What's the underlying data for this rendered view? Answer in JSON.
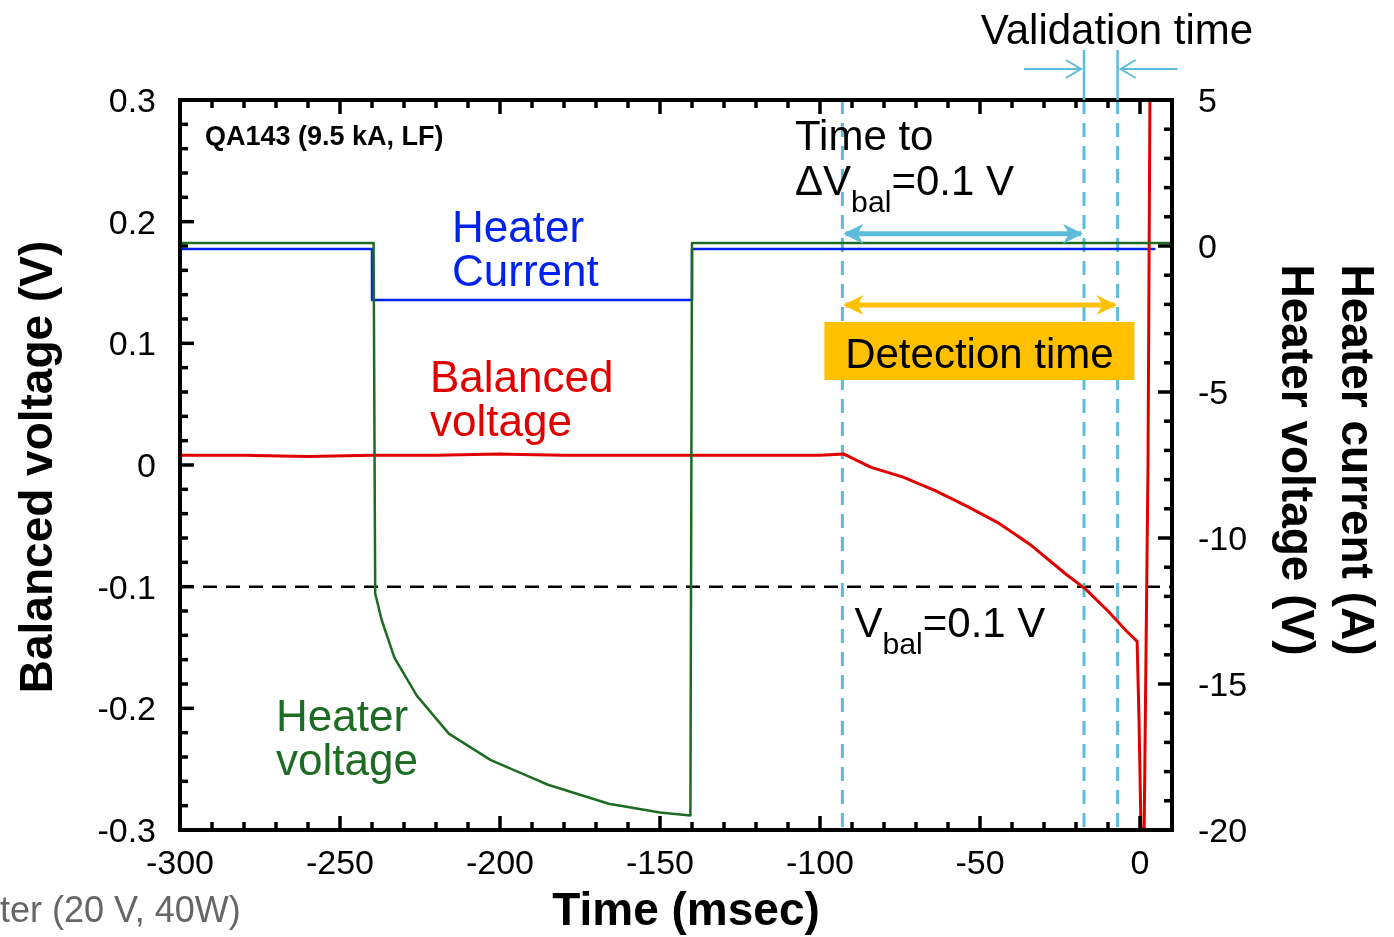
{
  "chart_data": {
    "type": "line",
    "xlabel": "Time (msec)",
    "ylabel": "Balanced voltage (V)",
    "y2label": "Heater current (A)\nHeater voltage (V)",
    "xlim": [
      -300,
      10
    ],
    "ylim": [
      -0.3,
      0.3
    ],
    "y2lim": [
      -20,
      5
    ],
    "xticks": [
      -300,
      {
        "value": -290,
        "label": null
      },
      {
        "value": -280,
        "label": null
      },
      {
        "value": -270,
        "label": null
      },
      {
        "value": -260,
        "label": null
      },
      -250,
      {
        "value": -240,
        "label": null
      },
      {
        "value": -230,
        "label": null
      },
      {
        "value": -220,
        "label": null
      },
      {
        "value": -210,
        "label": null
      },
      -200,
      {
        "value": -190,
        "label": null
      },
      {
        "value": -180,
        "label": null
      },
      {
        "value": -170,
        "label": null
      },
      {
        "value": -160,
        "label": null
      },
      -150,
      {
        "value": -140,
        "label": null
      },
      {
        "value": -130,
        "label": null
      },
      {
        "value": -120,
        "label": null
      },
      {
        "value": -110,
        "label": null
      },
      -100,
      {
        "value": -90,
        "label": null
      },
      {
        "value": -80,
        "label": null
      },
      {
        "value": -70,
        "label": null
      },
      {
        "value": -60,
        "label": null
      },
      -50,
      {
        "value": -40,
        "label": null
      },
      {
        "value": -30,
        "label": null
      },
      {
        "value": -20,
        "label": null
      },
      {
        "value": -10,
        "label": null
      },
      0
    ],
    "yticks": [
      -0.3,
      {
        "value": -0.28,
        "label": null
      },
      {
        "value": -0.26,
        "label": null
      },
      {
        "value": -0.24,
        "label": null
      },
      {
        "value": -0.22,
        "label": null
      },
      -0.2,
      {
        "value": -0.18,
        "label": null
      },
      {
        "value": -0.16,
        "label": null
      },
      {
        "value": -0.14,
        "label": null
      },
      {
        "value": -0.12,
        "label": null
      },
      -0.1,
      {
        "value": -0.08,
        "label": null
      },
      {
        "value": -0.06,
        "label": null
      },
      {
        "value": -0.04,
        "label": null
      },
      {
        "value": -0.02,
        "label": null
      },
      0,
      {
        "value": 0.02,
        "label": null
      },
      {
        "value": 0.04,
        "label": null
      },
      {
        "value": 0.06,
        "label": null
      },
      {
        "value": 0.08,
        "label": null
      },
      0.1,
      {
        "value": 0.12,
        "label": null
      },
      {
        "value": 0.14,
        "label": null
      },
      {
        "value": 0.16,
        "label": null
      },
      {
        "value": 0.18,
        "label": null
      },
      0.2,
      {
        "value": 0.22,
        "label": null
      },
      {
        "value": 0.24,
        "label": null
      },
      {
        "value": 0.26,
        "label": null
      },
      {
        "value": 0.28,
        "label": null
      },
      0.3
    ],
    "y2ticks": [
      -20,
      {
        "value": -19,
        "label": null
      },
      {
        "value": -18,
        "label": null
      },
      {
        "value": -17,
        "label": null
      },
      {
        "value": -16,
        "label": null
      },
      -15,
      {
        "value": -14,
        "label": null
      },
      {
        "value": -13,
        "label": null
      },
      {
        "value": -12,
        "label": null
      },
      {
        "value": -11,
        "label": null
      },
      -10,
      {
        "value": -9,
        "label": null
      },
      {
        "value": -8,
        "label": null
      },
      {
        "value": -7,
        "label": null
      },
      {
        "value": -6,
        "label": null
      },
      -5,
      {
        "value": -4,
        "label": null
      },
      {
        "value": -3,
        "label": null
      },
      {
        "value": -2,
        "label": null
      },
      {
        "value": -1,
        "label": null
      },
      0,
      {
        "value": 1,
        "label": null
      },
      {
        "value": 2,
        "label": null
      },
      {
        "value": 3,
        "label": null
      },
      {
        "value": 4,
        "label": null
      },
      5
    ],
    "grid": false,
    "series": [
      {
        "name": "Heater Current",
        "color": "#0022ee",
        "axis": "y2",
        "x": [
          -300,
          -240,
          -240,
          -140,
          -140,
          4.5
        ],
        "values": [
          -0.1,
          -0.1,
          -1.85,
          -1.85,
          -0.1,
          -0.1
        ]
      },
      {
        "name": "Balanced voltage",
        "color": "#e00000",
        "x": [
          -300,
          -280,
          -260,
          -240,
          -220,
          -200,
          -180,
          -160,
          -140,
          -120,
          -100,
          -92.5,
          -84,
          -74,
          -64,
          -54,
          -44,
          -34,
          -23,
          -17,
          -10,
          -4.4,
          -0.9,
          -0.3,
          0.3,
          1.3,
          2.5,
          3.1
        ],
        "values": [
          0.008,
          0.008,
          0.007,
          0.008,
          0.008,
          0.009,
          0.008,
          0.008,
          0.008,
          0.008,
          0.008,
          0.009,
          -0.002,
          -0.01,
          -0.021,
          -0.034,
          -0.048,
          -0.066,
          -0.09,
          -0.102,
          -0.12,
          -0.136,
          -0.145,
          -0.21,
          -0.298,
          -0.3,
          0.0,
          0.3
        ]
      },
      {
        "name": "Heater voltage",
        "color": "#1e6b23",
        "axis": "y2",
        "x": [
          -300,
          -239.5,
          -239,
          -237,
          -233,
          -226,
          -216,
          -203,
          -185,
          -166,
          -150,
          -140.5,
          -140,
          10
        ],
        "values": [
          0.1,
          0.1,
          -11.9,
          -12.8,
          -14.1,
          -15.4,
          -16.7,
          -17.6,
          -18.45,
          -19.1,
          -19.4,
          -19.5,
          0.1,
          0.1
        ]
      }
    ],
    "ref_lines": [
      {
        "axis": "y",
        "value": -0.1,
        "label": null,
        "color": "#000000",
        "line_style": "dashed"
      },
      {
        "axis": "x",
        "value": -93,
        "label": null,
        "color": "#5bbcdb",
        "line_style": "dashed"
      },
      {
        "axis": "x",
        "value": -17.5,
        "label": null,
        "color": "#5bbcdb",
        "line_style": "dashed"
      },
      {
        "axis": "x",
        "value": -7,
        "label": null,
        "color": "#5bbcdb",
        "line_style": "dashed"
      }
    ],
    "annotations": [
      "QA143 (9.5 kA, LF)",
      {
        "text": "Time to\nΔV$_{bal}$=0.1 V",
        "x": -17.5,
        "y": 0.19
      },
      "Detection time",
      "Validation time",
      "ter (20 V, 40W)",
      "V$_{bal}$=0.1 V"
    ]
  }
}
